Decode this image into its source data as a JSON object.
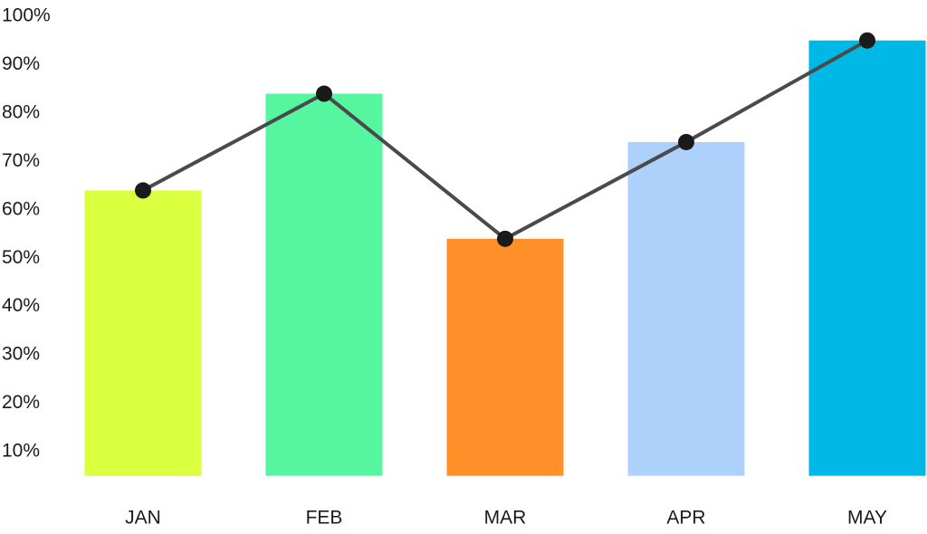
{
  "chart_data": {
    "type": "bar-line",
    "categories": [
      "JAN",
      "FEB",
      "MAR",
      "APR",
      "MAY"
    ],
    "series": [
      {
        "type": "bar",
        "colors": [
          "#d9ff3f",
          "#56f5a0",
          "#ff9029",
          "#aed1fc",
          "#00b8e6"
        ],
        "values": [
          64,
          84,
          54,
          74,
          95
        ]
      },
      {
        "type": "line",
        "color": "#4a4a4a",
        "marker_color": "#1a1a1a",
        "values": [
          64,
          84,
          54,
          74,
          95
        ]
      }
    ],
    "ylim": [
      5,
      100
    ],
    "yticks": [
      {
        "value": 10,
        "label": "10%"
      },
      {
        "value": 20,
        "label": "20%"
      },
      {
        "value": 30,
        "label": "30%"
      },
      {
        "value": 40,
        "label": "40%"
      },
      {
        "value": 50,
        "label": "50%"
      },
      {
        "value": 60,
        "label": "60%"
      },
      {
        "value": 70,
        "label": "70%"
      },
      {
        "value": 80,
        "label": "80%"
      },
      {
        "value": 90,
        "label": "90%"
      },
      {
        "value": 100,
        "label": "100%"
      }
    ],
    "grid": false
  }
}
